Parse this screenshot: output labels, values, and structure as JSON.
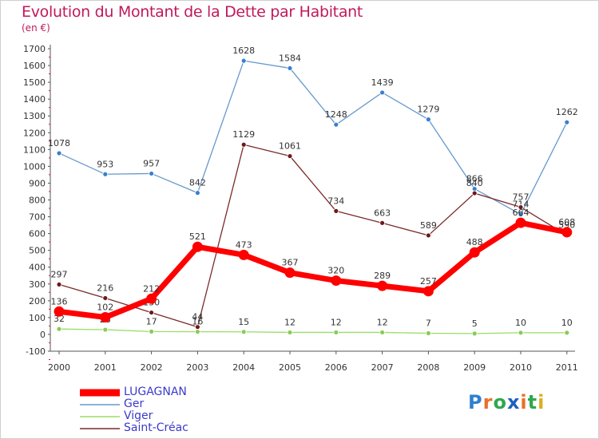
{
  "title": "Evolution du Montant de la Dette par Habitant",
  "subtitle": "(en €)",
  "logo": "Proxiti",
  "chart_data": {
    "type": "line",
    "title": "Evolution du Montant de la Dette par Habitant",
    "ylabel": "(en €)",
    "xlabel": "",
    "ylim": [
      -100,
      1700
    ],
    "yticks": [
      -100,
      0,
      100,
      200,
      300,
      400,
      500,
      600,
      700,
      800,
      900,
      1000,
      1100,
      1200,
      1300,
      1400,
      1500,
      1600,
      1700
    ],
    "categories": [
      "2000",
      "2001",
      "2002",
      "2003",
      "2004",
      "2005",
      "2006",
      "2007",
      "2008",
      "2009",
      "2010",
      "2011"
    ],
    "grid": false,
    "legend_position": "bottom-left",
    "series": [
      {
        "name": "Ger",
        "color": "#6699cc",
        "marker": "#3a7fd0",
        "values": [
          1078,
          953,
          957,
          842,
          1628,
          1584,
          1248,
          1439,
          1279,
          866,
          714,
          1262
        ],
        "labels": [
          "1078",
          "953",
          "957",
          "842",
          "1628",
          "1584",
          "1248",
          "1439",
          "1279",
          "866",
          "714",
          "1262"
        ]
      },
      {
        "name": "Saint-Créac",
        "color": "#7a2a2a",
        "marker": "#6b1a1a",
        "values": [
          297,
          216,
          130,
          44,
          1129,
          1061,
          734,
          663,
          589,
          840,
          757,
          590
        ],
        "labels": [
          "297",
          "216",
          "130",
          "44",
          "1129",
          "1061",
          "734",
          "663",
          "589",
          "840",
          "757",
          "590"
        ]
      },
      {
        "name": "Viger",
        "color": "#99dd66",
        "marker": "#88cc55",
        "values": [
          32,
          28,
          17,
          16,
          15,
          12,
          12,
          12,
          7,
          5,
          10,
          10
        ],
        "labels": [
          "32",
          "28",
          "17",
          "16",
          "15",
          "12",
          "12",
          "12",
          "7",
          "5",
          "10",
          "10"
        ]
      },
      {
        "name": "LUGAGNAN",
        "color": "#ff0000",
        "marker": "#ff0000",
        "values": [
          136,
          102,
          212,
          521,
          473,
          367,
          320,
          289,
          257,
          488,
          664,
          608
        ],
        "labels": [
          "136",
          "102",
          "212",
          "521",
          "473",
          "367",
          "320",
          "289",
          "257",
          "488",
          "664",
          "608"
        ]
      }
    ],
    "legend": [
      "LUGAGNAN",
      "Ger",
      "Viger",
      "Saint-Créac"
    ]
  }
}
